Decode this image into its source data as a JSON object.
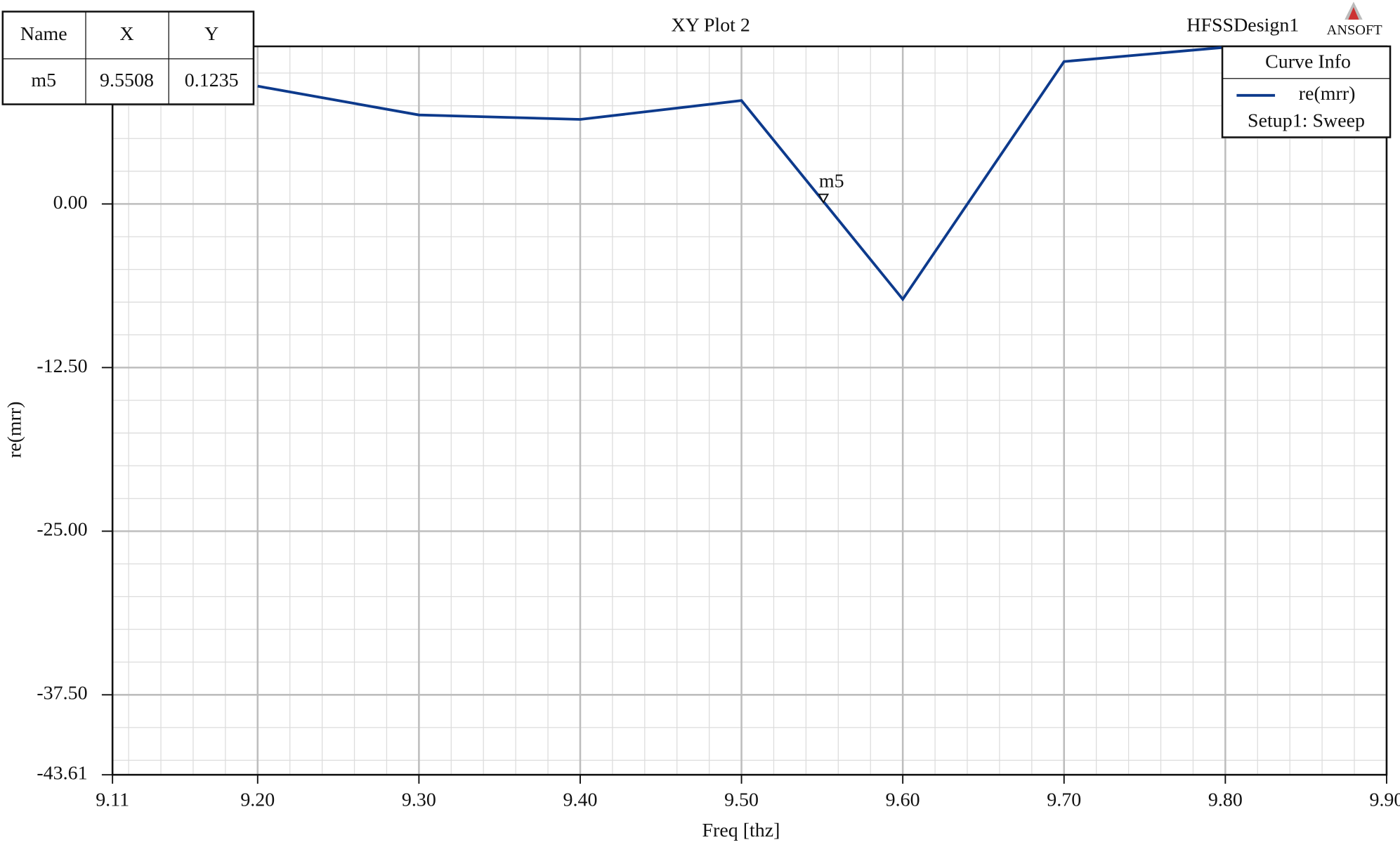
{
  "chart_data": {
    "type": "line",
    "title": "XY Plot 2",
    "design_name": "HFSSDesign1",
    "logo_text": "ANSOFT",
    "x_label": "Freq [thz]",
    "y_label": "re(mrr)",
    "x": [
      9.2,
      9.3,
      9.4,
      9.5,
      9.6,
      9.7,
      9.8
    ],
    "series": [
      {
        "name": "re(mrr)",
        "color": "#0d3a8c",
        "values": [
          9.0,
          6.8,
          6.46,
          7.9,
          -7.28,
          10.88,
          11.97
        ]
      }
    ],
    "legend_title": "Curve Info",
    "legend_subtitle": "Setup1: Sweep",
    "legend_position": "upper right",
    "xlim": [
      9.11,
      9.9
    ],
    "xticks": [
      9.11,
      {
        "value": 9.2,
        "label": "9.20"
      },
      {
        "value": 9.3,
        "label": "9.30"
      },
      {
        "value": 9.4,
        "label": "9.40"
      },
      {
        "value": 9.5,
        "label": "9.50"
      },
      {
        "value": 9.6,
        "label": "9.60"
      },
      {
        "value": 9.7,
        "label": "9.70"
      },
      {
        "value": 9.8,
        "label": "9.80"
      },
      {
        "value": 9.9,
        "label": "9.90"
      }
    ],
    "ylim": [
      -43.61,
      12.04
    ],
    "yticks": [
      {
        "value": 0,
        "label": "0.00"
      },
      {
        "value": -12.5,
        "label": "-12.50"
      },
      {
        "value": -25,
        "label": "-25.00"
      },
      {
        "value": -37.5,
        "label": "-37.50"
      },
      -43.61
    ],
    "grid": true,
    "table_headers": [
      "Name",
      "X",
      "Y"
    ],
    "markers": [
      {
        "name": "m5",
        "x": 9.5508,
        "y": 0.1235
      }
    ]
  }
}
